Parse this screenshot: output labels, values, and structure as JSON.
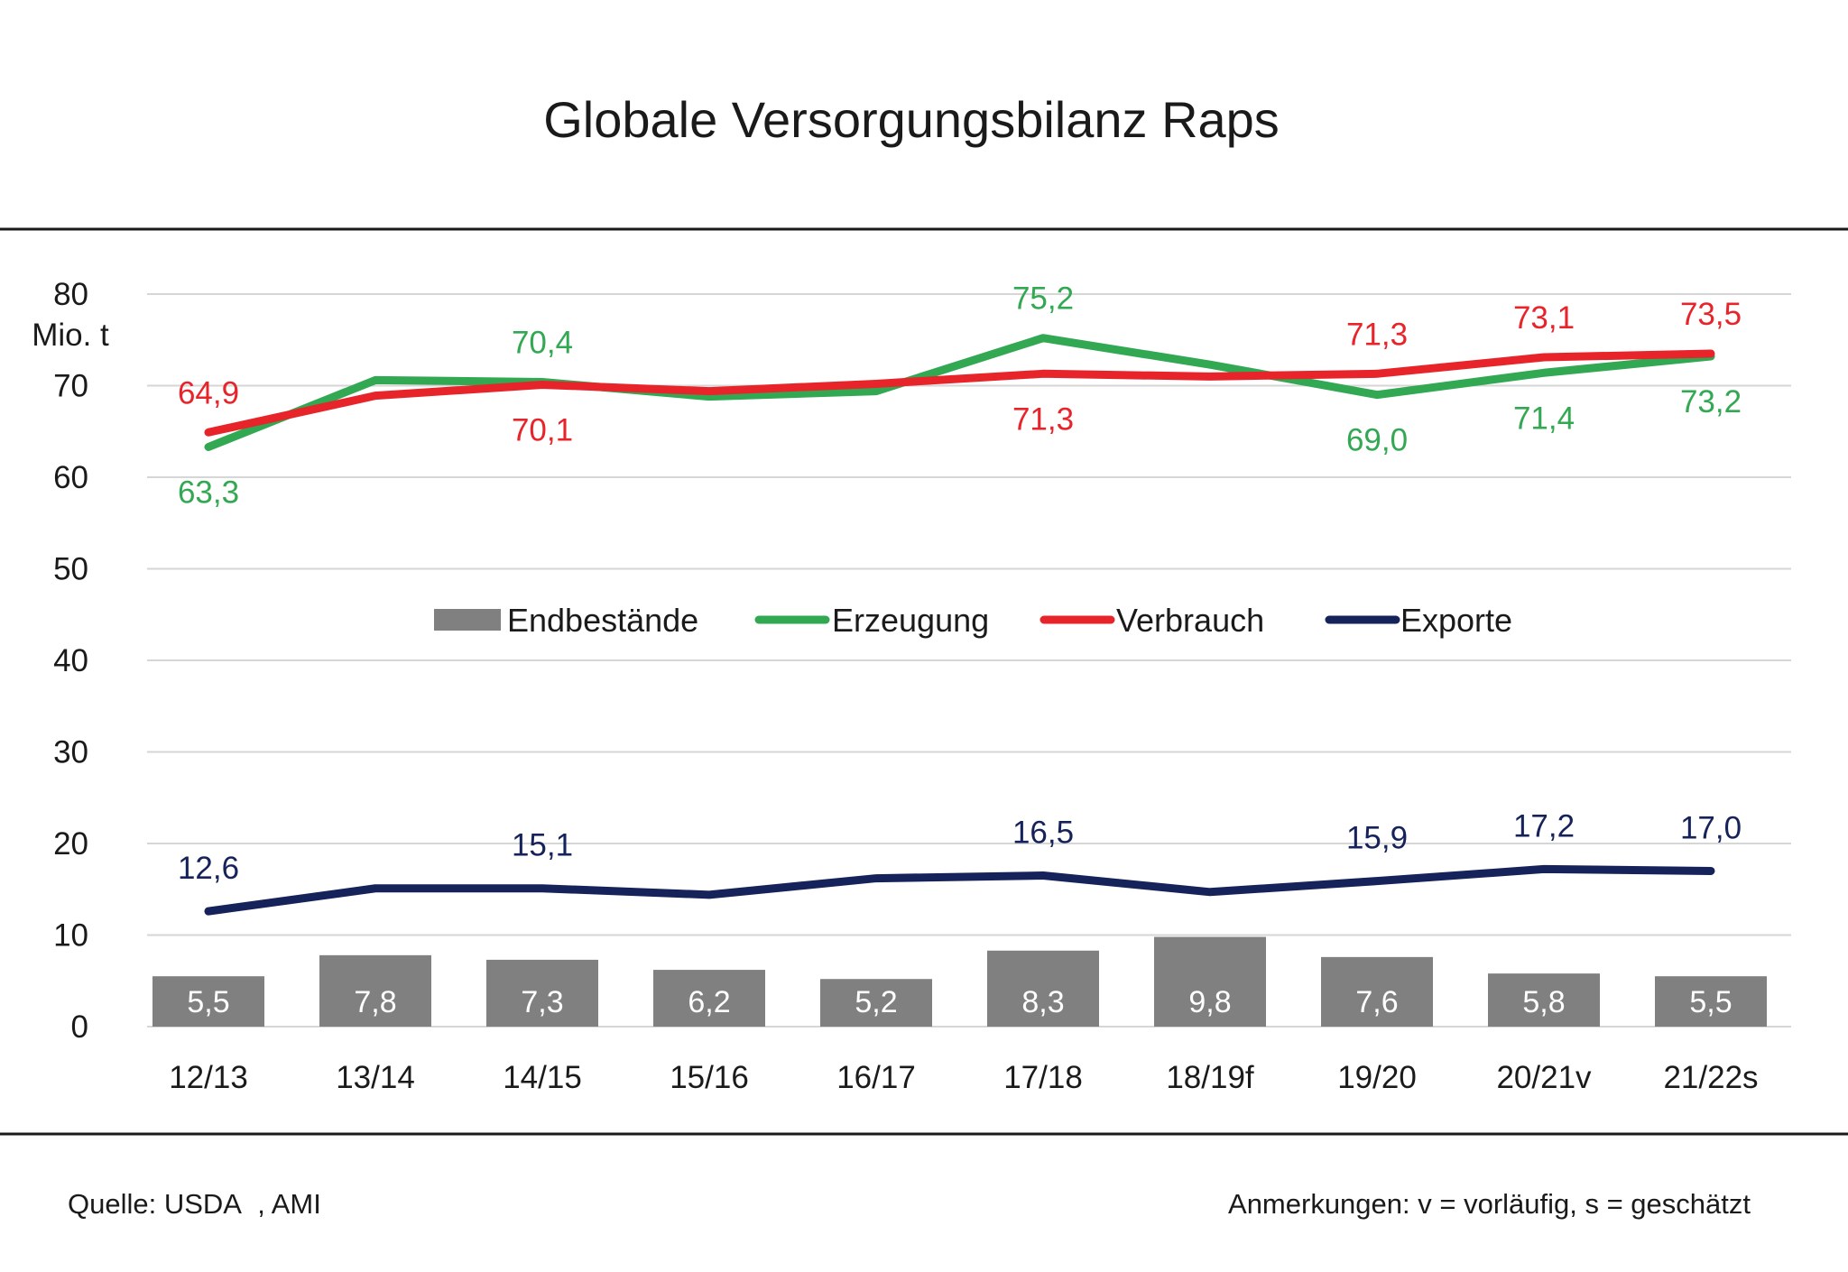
{
  "chart_data": {
    "type": "line",
    "title": "Globale Versorgungsbilanz Raps",
    "ylabel": "Mio. t",
    "xlabel": "",
    "ylim": [
      0,
      80
    ],
    "yticks": [
      0,
      10,
      20,
      30,
      40,
      50,
      60,
      70,
      80
    ],
    "grid": true,
    "legend_position": "center",
    "categories": [
      "12/13",
      "13/14",
      "14/15",
      "15/16",
      "16/17",
      "17/18",
      "18/19f",
      "19/20",
      "20/21v",
      "21/22s"
    ],
    "series": [
      {
        "name": "Endbestände",
        "kind": "bar",
        "color": "#808080",
        "values": [
          5.5,
          7.8,
          7.3,
          6.2,
          5.2,
          8.3,
          9.8,
          7.6,
          5.8,
          5.5
        ],
        "labels": [
          "5,5",
          "7,8",
          "7,3",
          "6,2",
          "5,2",
          "8,3",
          "9,8",
          "7,6",
          "5,8",
          "5,5"
        ]
      },
      {
        "name": "Erzeugung",
        "kind": "line",
        "color": "#32a852",
        "values": [
          63.3,
          70.6,
          70.4,
          68.8,
          69.4,
          75.2,
          72.3,
          69.0,
          71.4,
          73.2
        ],
        "labels": [
          "63,3",
          "",
          "70,4",
          "",
          "",
          "75,2",
          "",
          "69,0",
          "71,4",
          "73,2"
        ]
      },
      {
        "name": "Verbrauch",
        "kind": "line",
        "color": "#e8242b",
        "values": [
          64.9,
          68.9,
          70.1,
          69.4,
          70.2,
          71.3,
          71.0,
          71.3,
          73.1,
          73.5
        ],
        "labels": [
          "64,9",
          "",
          "70,1",
          "",
          "",
          "71,3",
          "",
          "71,3",
          "73,1",
          "73,5"
        ]
      },
      {
        "name": "Exporte",
        "kind": "line",
        "color": "#16225a",
        "values": [
          12.6,
          15.1,
          15.1,
          14.4,
          16.2,
          16.5,
          14.7,
          15.9,
          17.2,
          17.0
        ],
        "labels": [
          "12,6",
          "",
          "15,1",
          "",
          "",
          "16,5",
          "",
          "15,9",
          "17,2",
          "17,0"
        ]
      }
    ]
  },
  "footer": {
    "source": "Quelle: USDA  , AMI",
    "note": "Anmerkungen: v = vorläufig, s = geschätzt"
  }
}
